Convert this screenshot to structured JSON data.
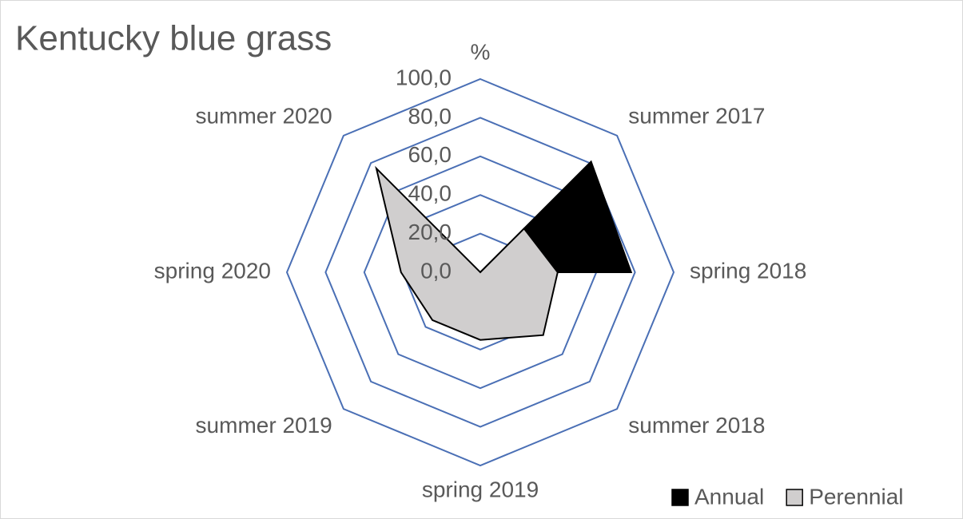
{
  "chart_data": {
    "type": "radar",
    "title": "Kentucky blue grass",
    "categories": [
      "%",
      "summer 2017",
      "spring 2018",
      "summer 2018",
      "spring 2019",
      "summer 2019",
      "spring 2020",
      "summer 2020"
    ],
    "series": [
      {
        "name": "Annual",
        "color": "#000000",
        "values": [
          0,
          81,
          78,
          0,
          0,
          0,
          0,
          0
        ]
      },
      {
        "name": "Perennial",
        "color": "#d0cece",
        "values": [
          0,
          32,
          40,
          46,
          35,
          35,
          41,
          76
        ]
      }
    ],
    "ylim": [
      0,
      100
    ],
    "yticks": [
      {
        "value": 0,
        "label": "0,0"
      },
      {
        "value": 20,
        "label": "20,0"
      },
      {
        "value": 40,
        "label": "40,0"
      },
      {
        "value": 60,
        "label": "60,0"
      },
      {
        "value": 80,
        "label": "80,0"
      },
      {
        "value": 100,
        "label": "100,0"
      }
    ],
    "grid": true,
    "grid_color": "#4a6fb5",
    "legend": "bottom-right"
  }
}
